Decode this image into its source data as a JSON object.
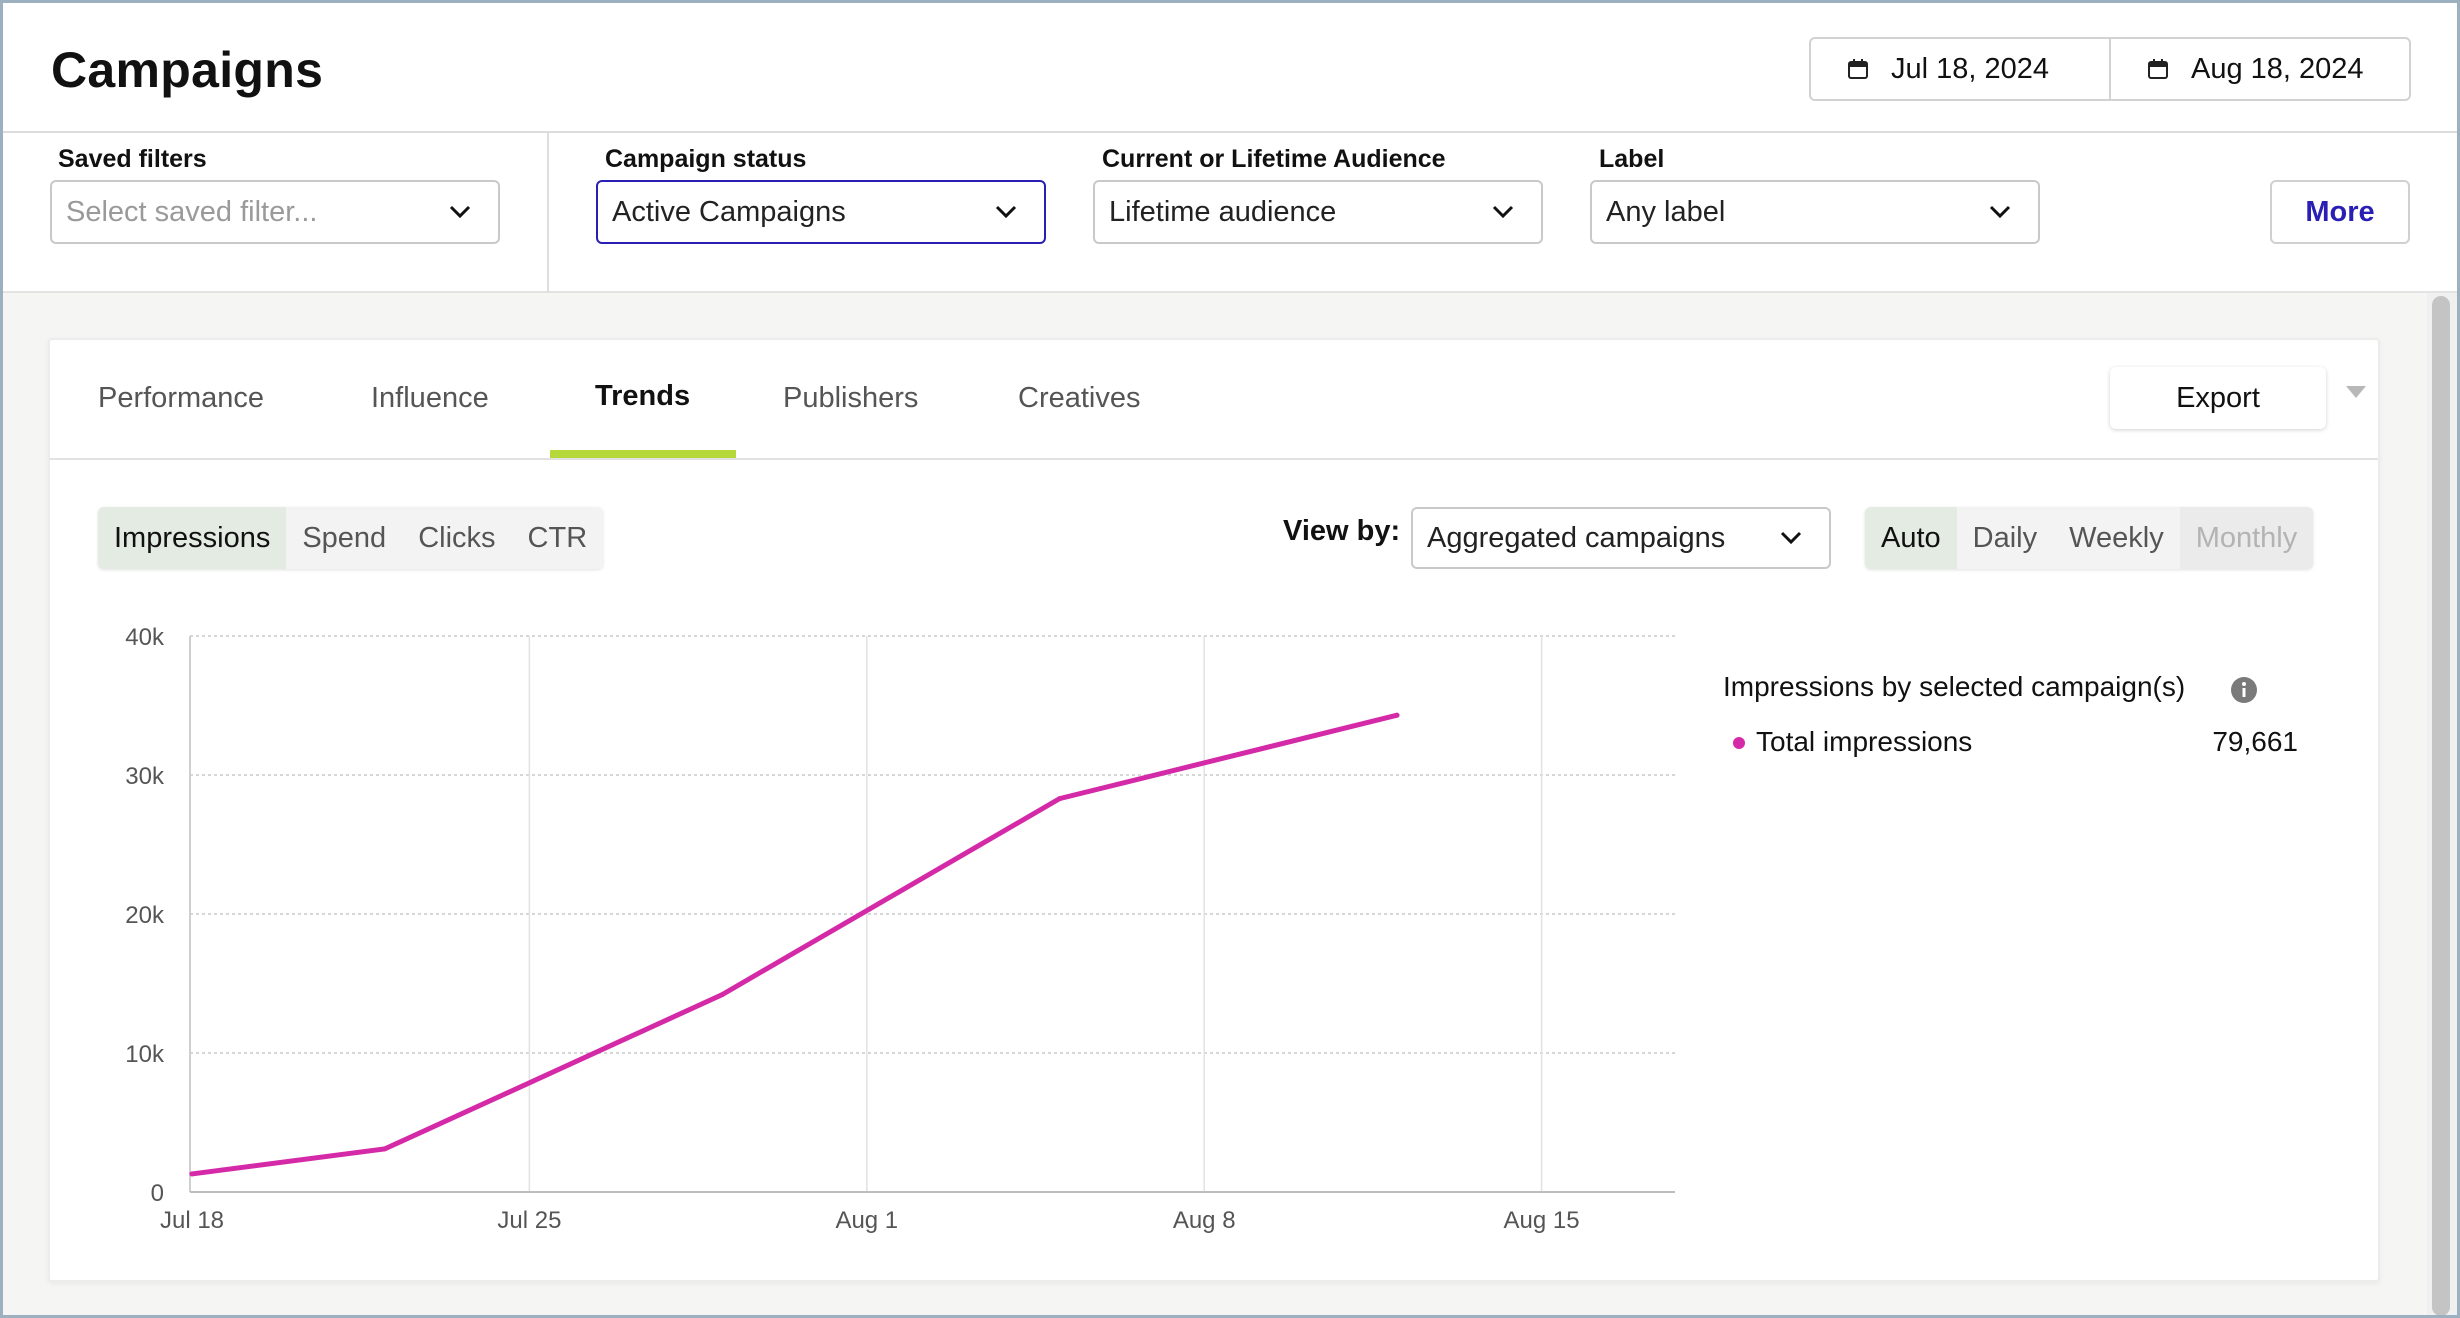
{
  "header": {
    "title": "Campaigns",
    "date_start": "Jul 18, 2024",
    "date_end": "Aug 18, 2024"
  },
  "filters": {
    "saved_filters_label": "Saved filters",
    "saved_filters_placeholder": "Select saved filter...",
    "campaign_status_label": "Campaign status",
    "campaign_status_value": "Active Campaigns",
    "audience_label": "Current or Lifetime Audience",
    "audience_value": "Lifetime audience",
    "label_label": "Label",
    "label_value": "Any label",
    "more_label": "More"
  },
  "tabs": [
    {
      "label": "Performance",
      "active": false
    },
    {
      "label": "Influence",
      "active": false
    },
    {
      "label": "Trends",
      "active": true
    },
    {
      "label": "Publishers",
      "active": false
    },
    {
      "label": "Creatives",
      "active": false
    }
  ],
  "export_label": "Export",
  "metric_toggle": [
    {
      "label": "Impressions",
      "active": true
    },
    {
      "label": "Spend",
      "active": false
    },
    {
      "label": "Clicks",
      "active": false
    },
    {
      "label": "CTR",
      "active": false
    }
  ],
  "view_by": {
    "label": "View by:",
    "value": "Aggregated campaigns"
  },
  "granularity": [
    {
      "label": "Auto",
      "active": true
    },
    {
      "label": "Daily",
      "active": false
    },
    {
      "label": "Weekly",
      "active": false
    },
    {
      "label": "Monthly",
      "active": false,
      "disabled": true
    }
  ],
  "legend": {
    "title": "Impressions by selected campaign(s)",
    "items": [
      {
        "name": "Total impressions",
        "value": "79,661"
      }
    ]
  },
  "colors": {
    "accent": "#2a1fb4",
    "series": "#d42aa8",
    "tab_underline": "#b6d83a"
  },
  "chart_data": {
    "type": "line",
    "x_tick_labels": [
      "Jul 18",
      "Jul 25",
      "Aug 1",
      "Aug 8",
      "Aug 15"
    ],
    "y_tick_labels": [
      "0",
      "10k",
      "20k",
      "30k",
      "40k"
    ],
    "ylim": [
      0,
      40000
    ],
    "grid": true,
    "series": [
      {
        "name": "Total impressions",
        "x": [
          "2024-07-18",
          "2024-07-22",
          "2024-07-29",
          "2024-08-05",
          "2024-08-12"
        ],
        "values": [
          1300,
          3100,
          14200,
          28300,
          34300
        ]
      }
    ]
  }
}
